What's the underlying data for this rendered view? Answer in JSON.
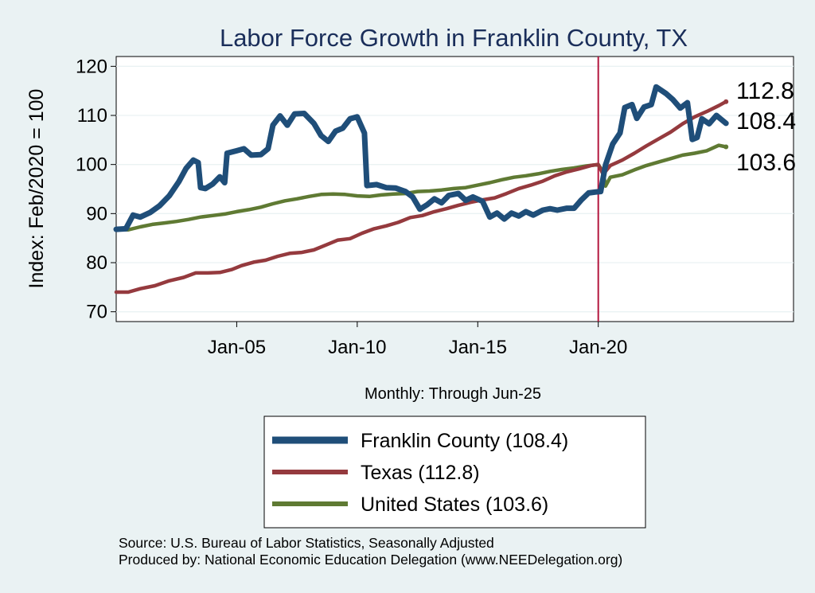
{
  "chart_data": {
    "type": "line",
    "title": "Labor Force Growth in Franklin  County, TX",
    "ylabel": "Index: Feb/2020 = 100",
    "xlabel": "Monthly: Through Jun-25",
    "ylim": [
      68,
      122
    ],
    "yticks": [
      70,
      80,
      90,
      100,
      110,
      120
    ],
    "xlim": [
      2000.0,
      2028.1
    ],
    "xticks": [
      {
        "value": 2005.0,
        "label": "Jan-05"
      },
      {
        "value": 2010.0,
        "label": "Jan-10"
      },
      {
        "value": 2015.0,
        "label": "Jan-15"
      },
      {
        "value": 2020.0,
        "label": "Jan-20"
      }
    ],
    "vline": {
      "x": 2020.0,
      "color": "#b3173f"
    },
    "grid": true,
    "legend": "bottom",
    "series": [
      {
        "name": "Franklin  County (108.4)",
        "color": "#1f4e79",
        "end_label": "108.4",
        "points": [
          [
            2000.0,
            86.8
          ],
          [
            2000.4,
            86.9
          ],
          [
            2000.7,
            89.7
          ],
          [
            2001.0,
            89.3
          ],
          [
            2001.4,
            90.2
          ],
          [
            2001.8,
            91.6
          ],
          [
            2002.2,
            93.6
          ],
          [
            2002.6,
            96.5
          ],
          [
            2002.9,
            99.2
          ],
          [
            2003.2,
            100.9
          ],
          [
            2003.4,
            100.4
          ],
          [
            2003.5,
            95.3
          ],
          [
            2003.7,
            95.1
          ],
          [
            2004.0,
            96.0
          ],
          [
            2004.3,
            97.5
          ],
          [
            2004.5,
            96.3
          ],
          [
            2004.6,
            102.3
          ],
          [
            2005.0,
            102.8
          ],
          [
            2005.3,
            103.2
          ],
          [
            2005.6,
            101.9
          ],
          [
            2006.0,
            102.0
          ],
          [
            2006.3,
            103.2
          ],
          [
            2006.5,
            108.0
          ],
          [
            2006.8,
            109.9
          ],
          [
            2007.1,
            108.0
          ],
          [
            2007.4,
            110.3
          ],
          [
            2007.8,
            110.4
          ],
          [
            2008.2,
            108.4
          ],
          [
            2008.5,
            105.9
          ],
          [
            2008.8,
            104.7
          ],
          [
            2009.1,
            106.8
          ],
          [
            2009.4,
            107.4
          ],
          [
            2009.7,
            109.3
          ],
          [
            2010.0,
            109.7
          ],
          [
            2010.3,
            106.4
          ],
          [
            2010.4,
            95.7
          ],
          [
            2010.8,
            95.9
          ],
          [
            2011.2,
            95.3
          ],
          [
            2011.6,
            95.2
          ],
          [
            2012.0,
            94.5
          ],
          [
            2012.3,
            93.4
          ],
          [
            2012.6,
            90.9
          ],
          [
            2012.9,
            91.8
          ],
          [
            2013.2,
            93.0
          ],
          [
            2013.5,
            92.2
          ],
          [
            2013.8,
            93.7
          ],
          [
            2014.2,
            94.1
          ],
          [
            2014.5,
            92.7
          ],
          [
            2014.8,
            93.4
          ],
          [
            2015.2,
            92.5
          ],
          [
            2015.5,
            89.3
          ],
          [
            2015.8,
            90.1
          ],
          [
            2016.1,
            88.9
          ],
          [
            2016.4,
            90.1
          ],
          [
            2016.7,
            89.5
          ],
          [
            2017.0,
            90.4
          ],
          [
            2017.3,
            89.7
          ],
          [
            2017.7,
            90.7
          ],
          [
            2018.0,
            91.0
          ],
          [
            2018.3,
            90.7
          ],
          [
            2018.7,
            91.1
          ],
          [
            2019.0,
            91.1
          ],
          [
            2019.3,
            92.8
          ],
          [
            2019.6,
            94.2
          ],
          [
            2019.9,
            94.4
          ],
          [
            2020.1,
            94.5
          ],
          [
            2020.3,
            99.9
          ],
          [
            2020.6,
            104.2
          ],
          [
            2020.9,
            106.4
          ],
          [
            2021.1,
            111.6
          ],
          [
            2021.4,
            112.2
          ],
          [
            2021.6,
            109.4
          ],
          [
            2021.9,
            111.7
          ],
          [
            2022.2,
            112.2
          ],
          [
            2022.4,
            115.8
          ],
          [
            2022.8,
            114.5
          ],
          [
            2023.1,
            113.2
          ],
          [
            2023.4,
            111.5
          ],
          [
            2023.7,
            112.6
          ],
          [
            2023.9,
            105.1
          ],
          [
            2024.1,
            105.5
          ],
          [
            2024.3,
            109.3
          ],
          [
            2024.6,
            108.3
          ],
          [
            2024.9,
            110.0
          ],
          [
            2025.1,
            109.2
          ],
          [
            2025.3,
            108.4
          ]
        ]
      },
      {
        "name": "Texas (112.8)",
        "color": "#953a3e",
        "end_label": "112.8",
        "points": [
          [
            2000.0,
            74.0
          ],
          [
            2000.5,
            74.0
          ],
          [
            2001.0,
            74.7
          ],
          [
            2001.6,
            75.3
          ],
          [
            2002.2,
            76.3
          ],
          [
            2002.8,
            77.0
          ],
          [
            2003.3,
            77.9
          ],
          [
            2003.8,
            77.9
          ],
          [
            2004.3,
            78.0
          ],
          [
            2004.8,
            78.6
          ],
          [
            2005.2,
            79.4
          ],
          [
            2005.7,
            80.1
          ],
          [
            2006.2,
            80.5
          ],
          [
            2006.7,
            81.3
          ],
          [
            2007.2,
            81.9
          ],
          [
            2007.7,
            82.1
          ],
          [
            2008.2,
            82.6
          ],
          [
            2008.7,
            83.6
          ],
          [
            2009.2,
            84.6
          ],
          [
            2009.7,
            84.9
          ],
          [
            2010.2,
            86.0
          ],
          [
            2010.7,
            86.9
          ],
          [
            2011.2,
            87.5
          ],
          [
            2011.7,
            88.2
          ],
          [
            2012.2,
            89.2
          ],
          [
            2012.7,
            89.6
          ],
          [
            2013.2,
            90.4
          ],
          [
            2013.7,
            91.0
          ],
          [
            2014.2,
            91.7
          ],
          [
            2014.7,
            92.3
          ],
          [
            2015.2,
            92.8
          ],
          [
            2015.7,
            93.2
          ],
          [
            2016.2,
            94.1
          ],
          [
            2016.7,
            95.1
          ],
          [
            2017.2,
            95.8
          ],
          [
            2017.7,
            96.6
          ],
          [
            2018.2,
            97.7
          ],
          [
            2018.7,
            98.5
          ],
          [
            2019.2,
            99.1
          ],
          [
            2019.7,
            99.8
          ],
          [
            2020.0,
            100.0
          ],
          [
            2020.2,
            98.0
          ],
          [
            2020.5,
            99.8
          ],
          [
            2021.0,
            100.9
          ],
          [
            2021.5,
            102.3
          ],
          [
            2022.0,
            103.8
          ],
          [
            2022.5,
            105.2
          ],
          [
            2023.0,
            106.6
          ],
          [
            2023.5,
            108.3
          ],
          [
            2024.0,
            109.7
          ],
          [
            2024.5,
            110.8
          ],
          [
            2025.0,
            112.0
          ],
          [
            2025.3,
            112.8
          ]
        ]
      },
      {
        "name": "United States (103.6)",
        "color": "#5f7a33",
        "end_label": "103.6",
        "points": [
          [
            2000.0,
            86.9
          ],
          [
            2000.5,
            86.7
          ],
          [
            2001.0,
            87.3
          ],
          [
            2001.5,
            87.8
          ],
          [
            2002.0,
            88.1
          ],
          [
            2002.5,
            88.4
          ],
          [
            2003.0,
            88.8
          ],
          [
            2003.5,
            89.3
          ],
          [
            2004.0,
            89.6
          ],
          [
            2004.5,
            89.9
          ],
          [
            2005.0,
            90.4
          ],
          [
            2005.5,
            90.8
          ],
          [
            2006.0,
            91.3
          ],
          [
            2006.5,
            92.0
          ],
          [
            2007.0,
            92.6
          ],
          [
            2007.5,
            93.0
          ],
          [
            2008.0,
            93.5
          ],
          [
            2008.5,
            93.9
          ],
          [
            2009.0,
            94.0
          ],
          [
            2009.5,
            93.9
          ],
          [
            2010.0,
            93.6
          ],
          [
            2010.5,
            93.5
          ],
          [
            2011.0,
            93.8
          ],
          [
            2011.5,
            94.0
          ],
          [
            2012.0,
            94.1
          ],
          [
            2012.5,
            94.5
          ],
          [
            2013.0,
            94.6
          ],
          [
            2013.5,
            94.8
          ],
          [
            2014.0,
            95.1
          ],
          [
            2014.5,
            95.3
          ],
          [
            2015.0,
            95.8
          ],
          [
            2015.5,
            96.3
          ],
          [
            2016.0,
            96.9
          ],
          [
            2016.5,
            97.4
          ],
          [
            2017.0,
            97.7
          ],
          [
            2017.5,
            98.1
          ],
          [
            2018.0,
            98.6
          ],
          [
            2018.5,
            99.0
          ],
          [
            2019.0,
            99.3
          ],
          [
            2019.5,
            99.7
          ],
          [
            2020.0,
            100.0
          ],
          [
            2020.2,
            98.5
          ],
          [
            2020.3,
            95.6
          ],
          [
            2020.5,
            97.4
          ],
          [
            2021.0,
            97.9
          ],
          [
            2021.5,
            98.9
          ],
          [
            2022.0,
            99.8
          ],
          [
            2022.5,
            100.5
          ],
          [
            2023.0,
            101.2
          ],
          [
            2023.5,
            101.9
          ],
          [
            2024.0,
            102.3
          ],
          [
            2024.5,
            102.8
          ],
          [
            2025.0,
            103.9
          ],
          [
            2025.3,
            103.6
          ]
        ]
      }
    ]
  },
  "source_lines": [
    "Source: U.S. Bureau of Labor Statistics, Seasonally Adjusted",
    "Produced by: National Economic Education Delegation (www.NEEDelegation.org)"
  ]
}
